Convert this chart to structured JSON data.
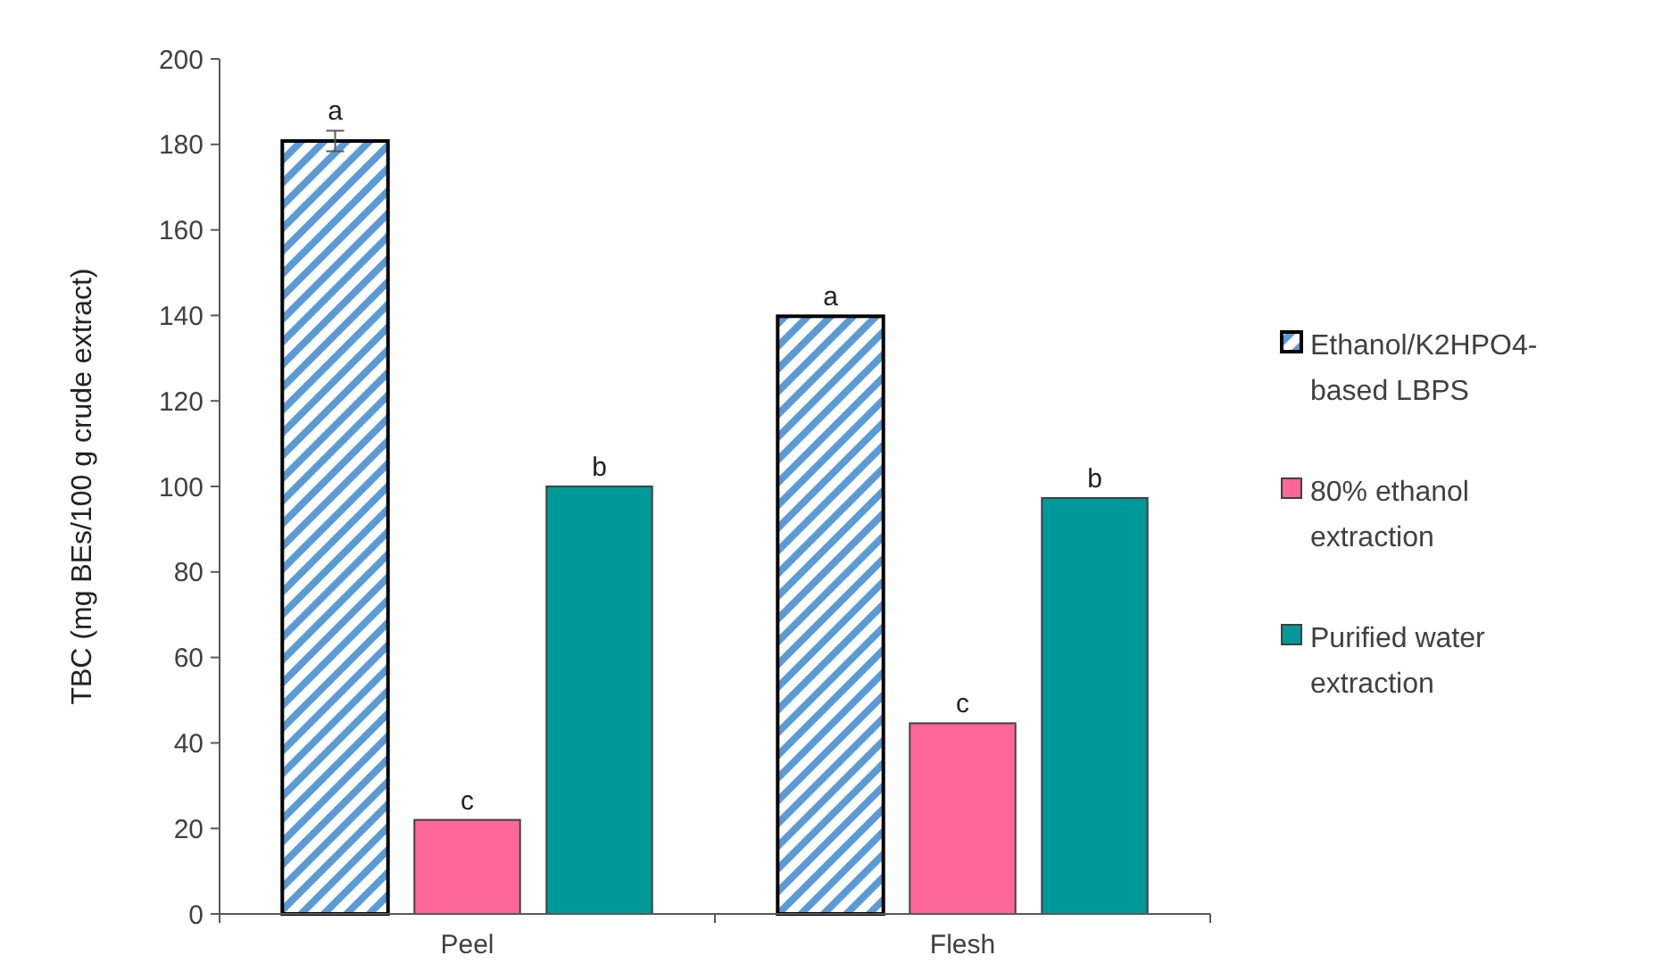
{
  "chart_data": {
    "type": "bar",
    "ylabel": "TBC (mg BEs/100 g crude extract)",
    "categories": [
      "Peel",
      "Flesh"
    ],
    "series": [
      {
        "name": "Ethanol/K2HPO4-based LBPS",
        "color": "#5b9bd5",
        "values": [
          180.8,
          139.8
        ],
        "errors": [
          2.4,
          null
        ]
      },
      {
        "name": "80% ethanol extraction",
        "color": "#ff6699",
        "values": [
          22,
          44.6
        ]
      },
      {
        "name": "Purified water extraction",
        "color": "#009999",
        "values": [
          100,
          97.3
        ]
      }
    ],
    "ylim": [
      0,
      200
    ],
    "yticks": [
      0,
      20,
      40,
      60,
      80,
      100,
      120,
      140,
      160,
      180,
      200
    ],
    "legend": "right",
    "grid": false,
    "annotations": [
      "a",
      "c",
      "b",
      "a",
      "c",
      "b"
    ]
  }
}
